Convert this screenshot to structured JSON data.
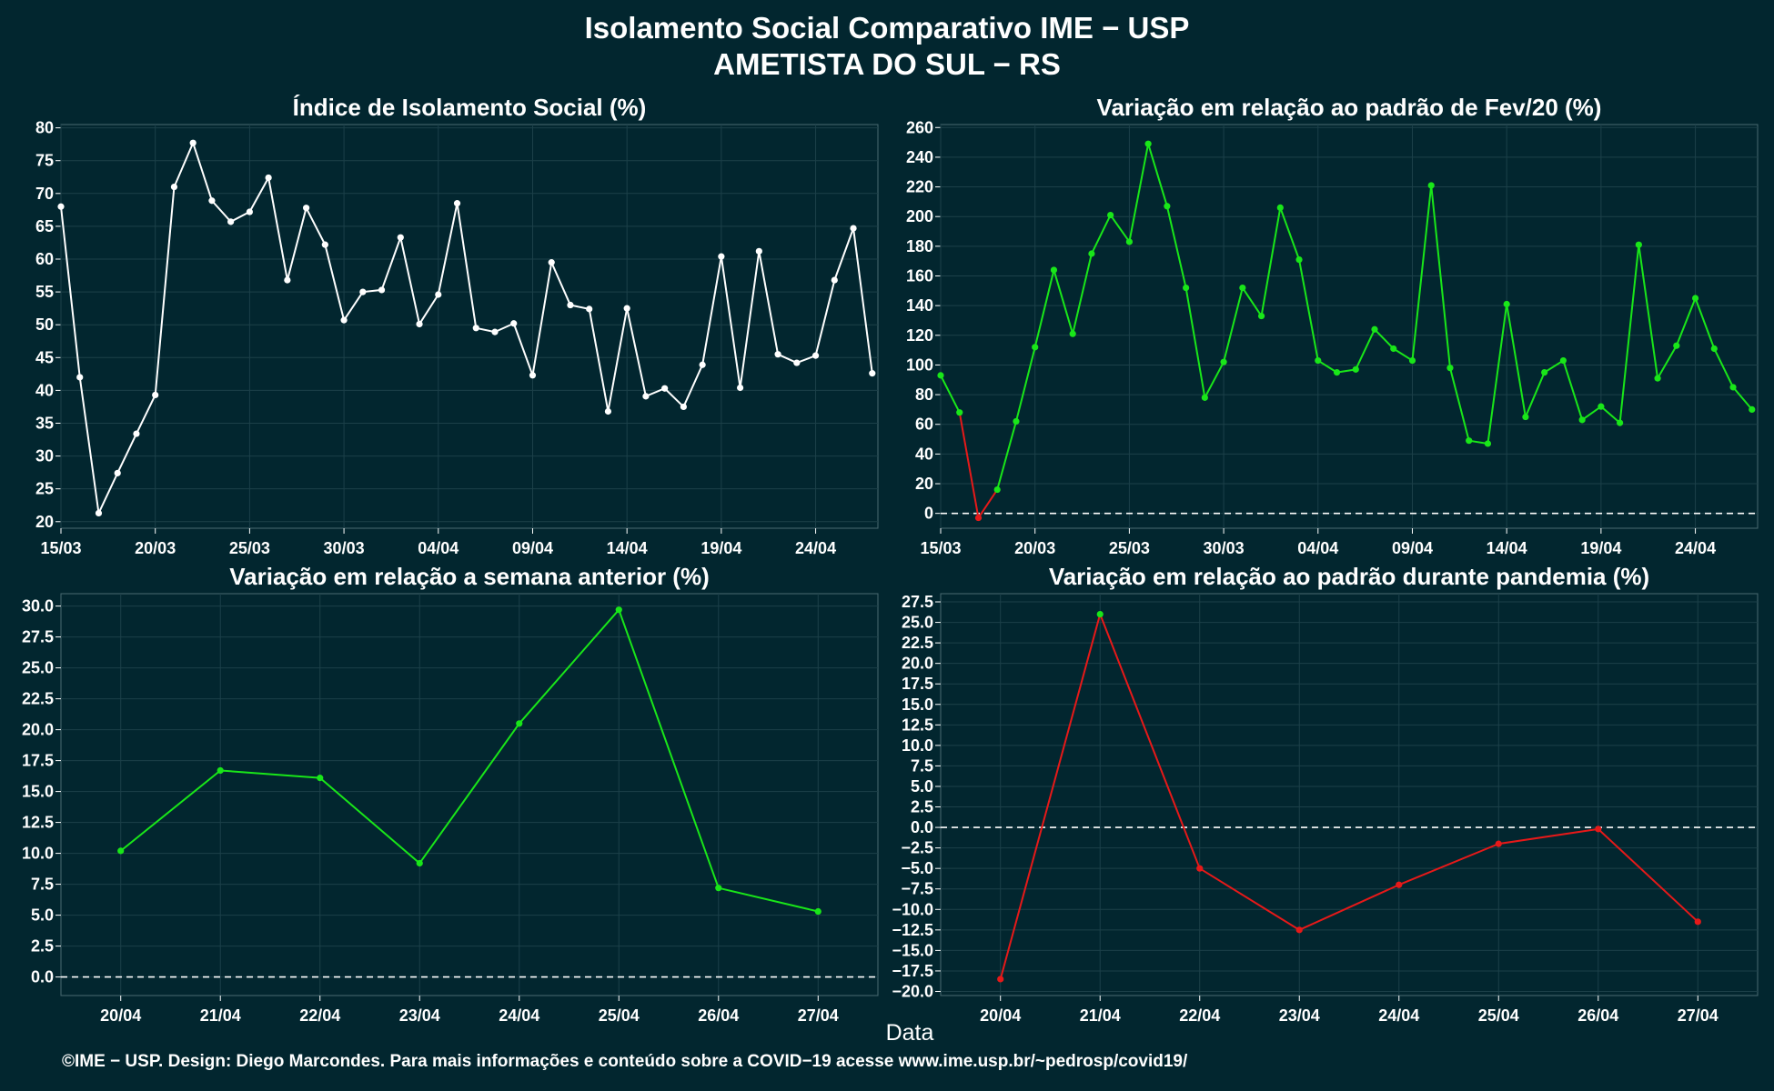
{
  "figure": {
    "title": "Isolamento Social Comparativo IME − USP",
    "subtitle": "AMETISTA DO SUL − RS",
    "xlabel": "Data",
    "footer": "©IME − USP. Design: Diego Marcondes. Para mais informações e conteúdo sobre a COVID−19 acesse www.ime.usp.br/~pedrosp/covid19/"
  },
  "colors": {
    "background": "#02262f",
    "plot_background": "#02262f",
    "grid": "#1c4049",
    "text": "#ffffff",
    "line_white": "#ffffff",
    "positive": "#19e619",
    "negative": "#e61919",
    "reference_line": "#ffffff"
  },
  "chart_data": [
    {
      "id": "isolation-index",
      "type": "line",
      "title": "Índice de Isolamento Social (%)",
      "ylim": [
        19,
        80.5
      ],
      "yticks": [
        20,
        25,
        30,
        35,
        40,
        45,
        50,
        55,
        60,
        65,
        70,
        75,
        80
      ],
      "xlim": [
        0,
        43.3
      ],
      "xticks": [
        0,
        5,
        10,
        15,
        20,
        25,
        30,
        35,
        40
      ],
      "xtick_labels": [
        "15/03",
        "20/03",
        "25/03",
        "30/03",
        "04/04",
        "09/04",
        "14/04",
        "19/04",
        "24/04"
      ],
      "color_mode": "white",
      "reference_line": null,
      "series": [
        {
          "values": [
            68,
            42,
            21.3,
            27.4,
            33.4,
            39.3,
            71,
            77.7,
            68.9,
            65.7,
            67.2,
            72.4,
            56.8,
            67.8,
            62.2,
            50.7,
            55,
            55.3,
            63.3,
            50.1,
            54.6,
            68.5,
            49.5,
            48.9,
            50.2,
            42.3,
            59.5,
            53,
            52.4,
            36.8,
            52.5,
            39.1,
            40.3,
            37.5,
            43.9,
            60.4,
            40.4,
            61.2,
            45.5,
            44.2,
            45.3,
            56.8,
            64.7,
            42.6
          ]
        }
      ]
    },
    {
      "id": "variation-feb20",
      "type": "line",
      "title": "Variação em relação ao padrão de Fev/20 (%)",
      "ylim": [
        -10,
        262
      ],
      "yticks": [
        0,
        20,
        40,
        60,
        80,
        100,
        120,
        140,
        160,
        180,
        200,
        220,
        240,
        260
      ],
      "xlim": [
        0,
        43.3
      ],
      "xticks": [
        0,
        5,
        10,
        15,
        20,
        25,
        30,
        35,
        40
      ],
      "xtick_labels": [
        "15/03",
        "20/03",
        "25/03",
        "30/03",
        "04/04",
        "09/04",
        "14/04",
        "19/04",
        "24/04"
      ],
      "color_mode": "sign",
      "reference_line": 0,
      "series": [
        {
          "values": [
            93,
            68,
            -3,
            16,
            62,
            112,
            164,
            121,
            175,
            201,
            183,
            249,
            207,
            152,
            78,
            102,
            152,
            133,
            206,
            171,
            103,
            95,
            97,
            124,
            111,
            103,
            221,
            98,
            49,
            47,
            141,
            65,
            95,
            103,
            63,
            72,
            61,
            181,
            91,
            113,
            145,
            111,
            85,
            70
          ]
        }
      ]
    },
    {
      "id": "variation-week",
      "type": "line",
      "title": "Variação em relação a semana anterior (%)",
      "ylim": [
        -1.5,
        31
      ],
      "yticks": [
        0.0,
        2.5,
        5.0,
        7.5,
        10.0,
        12.5,
        15.0,
        17.5,
        20.0,
        22.5,
        25.0,
        27.5,
        30.0
      ],
      "ytick_decimals": 1,
      "xlim": [
        -0.6,
        7.6
      ],
      "xticks": [
        0,
        1,
        2,
        3,
        4,
        5,
        6,
        7
      ],
      "xtick_labels": [
        "20/04",
        "21/04",
        "22/04",
        "23/04",
        "24/04",
        "25/04",
        "26/04",
        "27/04"
      ],
      "color_mode": "sign",
      "reference_line": 0,
      "series": [
        {
          "values": [
            10.2,
            16.7,
            16.1,
            9.2,
            20.5,
            29.7,
            7.2,
            5.3
          ]
        }
      ]
    },
    {
      "id": "variation-pandemic",
      "type": "line",
      "title": "Variação em relação ao padrão durante pandemia (%)",
      "ylim": [
        -20.5,
        28.5
      ],
      "yticks": [
        -20.0,
        -17.5,
        -15.0,
        -12.5,
        -10.0,
        -7.5,
        -5.0,
        -2.5,
        0.0,
        2.5,
        5.0,
        7.5,
        10.0,
        12.5,
        15.0,
        17.5,
        20.0,
        22.5,
        25.0,
        27.5
      ],
      "ytick_decimals": 1,
      "xlim": [
        -0.6,
        7.6
      ],
      "xticks": [
        0,
        1,
        2,
        3,
        4,
        5,
        6,
        7
      ],
      "xtick_labels": [
        "20/04",
        "21/04",
        "22/04",
        "23/04",
        "24/04",
        "25/04",
        "26/04",
        "27/04"
      ],
      "color_mode": "sign",
      "reference_line": 0,
      "series": [
        {
          "values": [
            -18.5,
            26.0,
            -5.0,
            -12.5,
            -7.0,
            -2.0,
            -0.2,
            -11.5
          ]
        }
      ]
    }
  ]
}
